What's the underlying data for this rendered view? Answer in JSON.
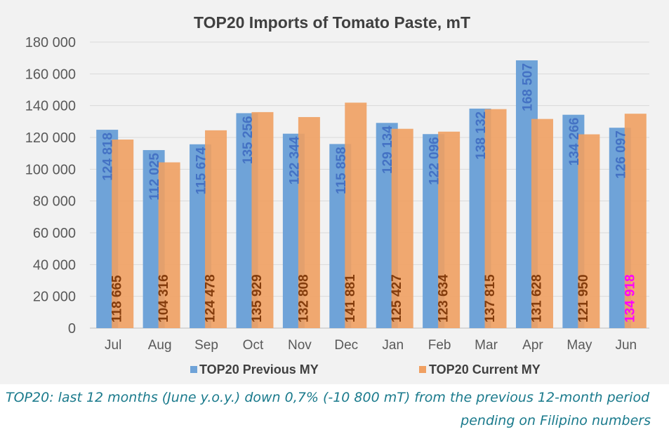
{
  "chart_data": {
    "type": "bar",
    "title": "TOP20 Imports of Tomato Paste, mT",
    "xlabel": "",
    "ylabel": "",
    "ylim": [
      0,
      180000
    ],
    "yticks": [
      0,
      20000,
      40000,
      60000,
      80000,
      100000,
      120000,
      140000,
      160000,
      180000
    ],
    "ytick_labels": [
      "0",
      "20 000",
      "40 000",
      "60 000",
      "80 000",
      "100 000",
      "120 000",
      "140 000",
      "160 000",
      "180 000"
    ],
    "grid": true,
    "legend_position": "bottom",
    "categories": [
      "Jul",
      "Aug",
      "Sep",
      "Oct",
      "Nov",
      "Dec",
      "Jan",
      "Feb",
      "Mar",
      "Apr",
      "May",
      "Jun"
    ],
    "series": [
      {
        "name": "TOP20 Previous MY",
        "color": "#6fa3d8",
        "label_color": "#4472c4",
        "values": [
          124818,
          112025,
          115674,
          135256,
          122344,
          115858,
          129134,
          122096,
          138132,
          168507,
          134266,
          126097
        ],
        "labels": [
          "124 818",
          "112 025",
          "115 674",
          "135 256",
          "122 344",
          "115 858",
          "129 134",
          "122 096",
          "138 132",
          "168 507",
          "134 266",
          "126 097"
        ]
      },
      {
        "name": "TOP20 Current MY",
        "color": "#f0a062",
        "label_color": "#843c0c",
        "highlight_color": "#ff00ff",
        "highlight_index": 11,
        "values": [
          118665,
          104316,
          124478,
          135929,
          132808,
          141881,
          125427,
          123634,
          137815,
          131628,
          121950,
          134918
        ],
        "labels": [
          "118 665",
          "104 316",
          "124 478",
          "135 929",
          "132 808",
          "141 881",
          "125 427",
          "123 634",
          "137 815",
          "131 628",
          "121 950",
          "134 918"
        ]
      }
    ]
  },
  "caption": {
    "line1": "TOP20: last 12 months (June y.o.y.) down 0,7% (-10 800 mT) from the previous 12-month period",
    "line2": "pending on Filipino numbers"
  }
}
